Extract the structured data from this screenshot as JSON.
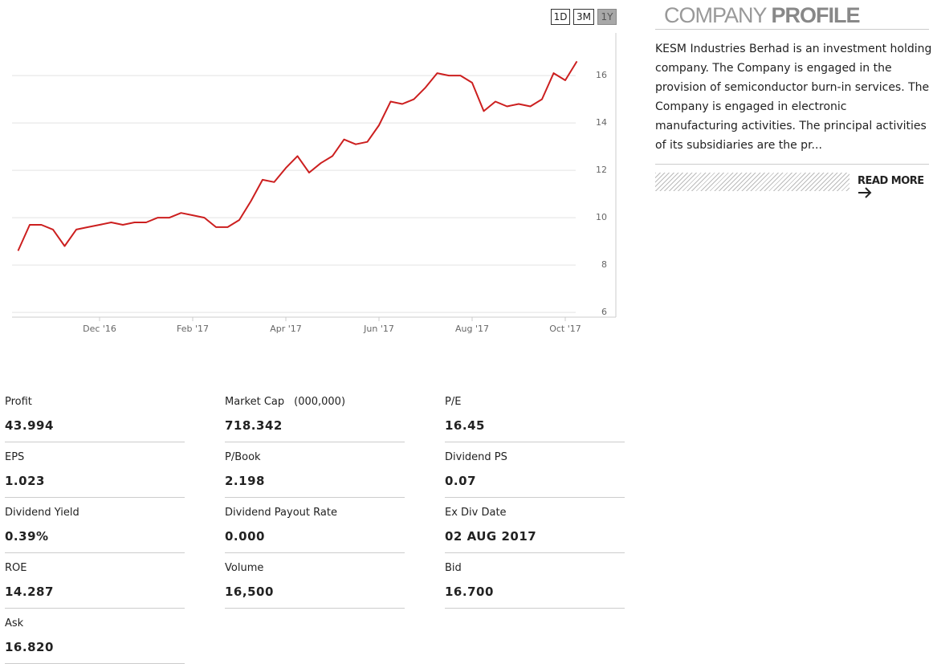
{
  "range_buttons": [
    "1D",
    "3M",
    "1Y"
  ],
  "chart_data": {
    "type": "line",
    "color": "#cc1f1f",
    "grid": true,
    "categories": [
      null,
      null,
      null,
      null,
      null,
      null,
      null,
      "Dec '16",
      null,
      null,
      null,
      null,
      null,
      null,
      null,
      "Feb '17",
      null,
      null,
      null,
      null,
      null,
      null,
      null,
      "Apr '17",
      null,
      null,
      null,
      null,
      null,
      null,
      null,
      "Jun '17",
      null,
      null,
      null,
      null,
      null,
      null,
      null,
      "Aug '17",
      null,
      null,
      null,
      null,
      null,
      null,
      null,
      "Oct '17",
      null
    ],
    "values": [
      8.6,
      9.7,
      9.7,
      9.5,
      8.8,
      9.5,
      9.6,
      9.7,
      9.8,
      9.7,
      9.8,
      9.8,
      10.0,
      10.0,
      10.2,
      10.1,
      10.0,
      9.6,
      9.6,
      9.9,
      10.7,
      11.6,
      11.5,
      12.1,
      12.6,
      11.9,
      12.3,
      12.6,
      13.3,
      13.1,
      13.2,
      13.9,
      14.9,
      14.8,
      15.0,
      15.5,
      16.1,
      16.0,
      16.0,
      15.7,
      14.5,
      14.9,
      14.7,
      14.8,
      14.7,
      15.0,
      16.1,
      15.8,
      16.6
    ],
    "ylim": [
      5.8,
      17.8
    ],
    "yticks": [
      6,
      8,
      10,
      12,
      14,
      16
    ]
  },
  "profile": {
    "title_light": "COMPANY",
    "title_bold": "PROFILE",
    "text": "KESM Industries Berhad is an investment holding company. The Company is engaged in the provision of semiconductor burn-in services. The Company is engaged in electronic manufacturing activities. The principal activities of its subsidiaries are the pr...",
    "read_more": "READ MORE"
  },
  "stats": [
    {
      "label": "Profit",
      "value": "43.994"
    },
    {
      "label": "Market Cap",
      "note": "(000,000)",
      "value": "718.342"
    },
    {
      "label": "P/E",
      "value": "16.45"
    },
    {
      "label": "EPS",
      "value": "1.023"
    },
    {
      "label": "P/Book",
      "value": "2.198"
    },
    {
      "label": "Dividend PS",
      "value": "0.07"
    },
    {
      "label": "Dividend Yield",
      "value": "0.39%"
    },
    {
      "label": "Dividend Payout Rate",
      "value": "0.000"
    },
    {
      "label": "Ex Div Date",
      "value": "02 AUG 2017"
    },
    {
      "label": "ROE",
      "value": "14.287"
    },
    {
      "label": "Volume",
      "value": "16,500"
    },
    {
      "label": "Bid",
      "value": "16.700"
    },
    {
      "label": "Ask",
      "value": "16.820"
    }
  ]
}
